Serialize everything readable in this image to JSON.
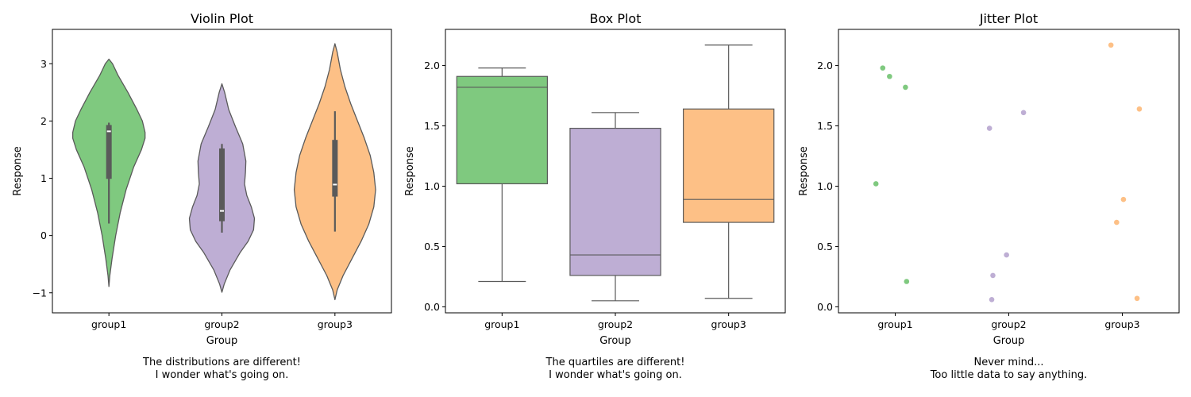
{
  "figure": {
    "colors": {
      "group1": "#7fc97f",
      "group2": "#beaed4",
      "group3": "#fdc086",
      "edge": "#5a5a5a"
    }
  },
  "chart_data": [
    {
      "type": "violin",
      "title": "Violin Plot",
      "xlabel": "Group",
      "ylabel": "Response",
      "categories": [
        "group1",
        "group2",
        "group3"
      ],
      "ylim": [
        -1.35,
        3.6
      ],
      "yticks": [
        -1,
        0,
        1,
        2,
        3
      ],
      "ytick_labels": [
        "−1",
        "0",
        "1",
        "2",
        "3"
      ],
      "grid": false,
      "caption_lines": [
        "The distributions are different!",
        "I wonder what's going on."
      ],
      "series": [
        {
          "category": "group1",
          "range": [
            -0.89,
            3.08
          ],
          "box": {
            "q1": 0.99,
            "median": 1.82,
            "q3": 1.93,
            "whisker_low": 0.21,
            "whisker_high": 1.97
          },
          "density": [
            [
              -0.89,
              0.0
            ],
            [
              -0.7,
              0.02
            ],
            [
              -0.4,
              0.07
            ],
            [
              0.0,
              0.15
            ],
            [
              0.4,
              0.25
            ],
            [
              0.8,
              0.38
            ],
            [
              1.2,
              0.55
            ],
            [
              1.5,
              0.72
            ],
            [
              1.7,
              0.8
            ],
            [
              1.8,
              0.8
            ],
            [
              2.0,
              0.74
            ],
            [
              2.2,
              0.62
            ],
            [
              2.5,
              0.42
            ],
            [
              2.8,
              0.2
            ],
            [
              3.0,
              0.08
            ],
            [
              3.08,
              0.0
            ]
          ]
        },
        {
          "category": "group2",
          "range": [
            -0.99,
            2.65
          ],
          "box": {
            "q1": 0.25,
            "median": 0.43,
            "q3": 1.52,
            "whisker_low": 0.05,
            "whisker_high": 1.6
          },
          "density": [
            [
              -0.99,
              0.0
            ],
            [
              -0.85,
              0.05
            ],
            [
              -0.6,
              0.18
            ],
            [
              -0.3,
              0.4
            ],
            [
              -0.1,
              0.58
            ],
            [
              0.1,
              0.7
            ],
            [
              0.3,
              0.72
            ],
            [
              0.5,
              0.65
            ],
            [
              0.7,
              0.55
            ],
            [
              0.9,
              0.5
            ],
            [
              1.1,
              0.52
            ],
            [
              1.3,
              0.53
            ],
            [
              1.6,
              0.46
            ],
            [
              1.9,
              0.3
            ],
            [
              2.2,
              0.15
            ],
            [
              2.5,
              0.06
            ],
            [
              2.65,
              0.0
            ]
          ]
        },
        {
          "category": "group3",
          "range": [
            -1.12,
            3.35
          ],
          "box": {
            "q1": 0.68,
            "median": 0.89,
            "q3": 1.67,
            "whisker_low": 0.07,
            "whisker_high": 2.17
          },
          "density": [
            [
              -1.12,
              0.0
            ],
            [
              -0.95,
              0.05
            ],
            [
              -0.7,
              0.18
            ],
            [
              -0.4,
              0.38
            ],
            [
              -0.1,
              0.58
            ],
            [
              0.2,
              0.75
            ],
            [
              0.5,
              0.86
            ],
            [
              0.8,
              0.9
            ],
            [
              1.1,
              0.86
            ],
            [
              1.4,
              0.78
            ],
            [
              1.7,
              0.65
            ],
            [
              2.0,
              0.5
            ],
            [
              2.3,
              0.35
            ],
            [
              2.6,
              0.22
            ],
            [
              2.9,
              0.12
            ],
            [
              3.2,
              0.05
            ],
            [
              3.35,
              0.0
            ]
          ]
        }
      ]
    },
    {
      "type": "box",
      "title": "Box Plot",
      "xlabel": "Group",
      "ylabel": "Response",
      "categories": [
        "group1",
        "group2",
        "group3"
      ],
      "ylim": [
        -0.05,
        2.3
      ],
      "yticks": [
        0.0,
        0.5,
        1.0,
        1.5,
        2.0
      ],
      "ytick_labels": [
        "0.0",
        "0.5",
        "1.0",
        "1.5",
        "2.0"
      ],
      "grid": false,
      "caption_lines": [
        "The quartiles are different!",
        "I wonder what's going on."
      ],
      "series": [
        {
          "category": "group1",
          "whisker_low": 0.21,
          "q1": 1.02,
          "median": 1.82,
          "q3": 1.91,
          "whisker_high": 1.98
        },
        {
          "category": "group2",
          "whisker_low": 0.05,
          "q1": 0.26,
          "median": 0.43,
          "q3": 1.48,
          "whisker_high": 1.61
        },
        {
          "category": "group3",
          "whisker_low": 0.07,
          "q1": 0.7,
          "median": 0.89,
          "q3": 1.64,
          "whisker_high": 2.17
        }
      ]
    },
    {
      "type": "scatter",
      "title": "Jitter Plot",
      "xlabel": "Group",
      "ylabel": "Response",
      "categories": [
        "group1",
        "group2",
        "group3"
      ],
      "ylim": [
        -0.05,
        2.3
      ],
      "yticks": [
        0.0,
        0.5,
        1.0,
        1.5,
        2.0
      ],
      "ytick_labels": [
        "0.0",
        "0.5",
        "1.0",
        "1.5",
        "2.0"
      ],
      "grid": false,
      "caption_lines": [
        "Never mind...",
        "Too little data to say anything."
      ],
      "series": [
        {
          "category": "group1",
          "points": [
            [
              -0.17,
              1.02
            ],
            [
              -0.11,
              1.98
            ],
            [
              -0.05,
              1.91
            ],
            [
              0.09,
              1.82
            ],
            [
              0.1,
              0.21
            ]
          ]
        },
        {
          "category": "group2",
          "points": [
            [
              -0.17,
              1.48
            ],
            [
              -0.14,
              0.26
            ],
            [
              -0.15,
              0.06
            ],
            [
              -0.02,
              0.43
            ],
            [
              0.13,
              1.61
            ]
          ]
        },
        {
          "category": "group3",
          "points": [
            [
              -0.1,
              2.17
            ],
            [
              -0.05,
              0.7
            ],
            [
              0.01,
              0.89
            ],
            [
              0.13,
              0.07
            ],
            [
              0.15,
              1.64
            ]
          ]
        }
      ]
    }
  ]
}
